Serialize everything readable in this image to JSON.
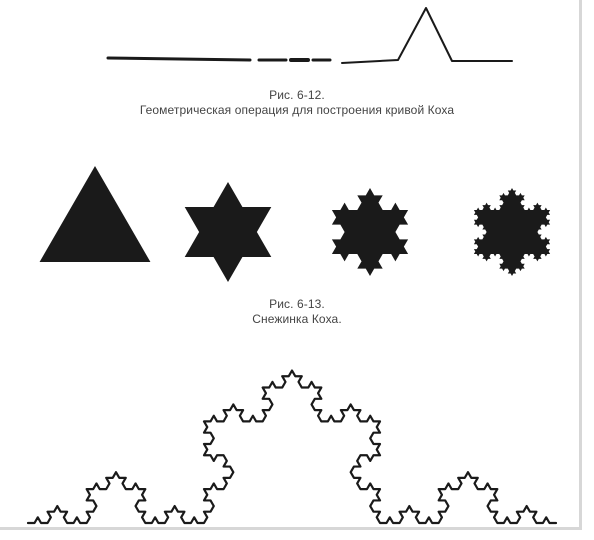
{
  "figure_12": {
    "number": "Рис. 6-12.",
    "text": "Геометрическая операция для построения кривой Коха"
  },
  "figure_13": {
    "number": "Рис. 6-13.",
    "text": "Снежинка Коха."
  },
  "colors": {
    "ink": "#1a1a1a",
    "caption": "#444444",
    "frame": "#d7d7d7"
  },
  "snowflakes": [
    {
      "iterations": 0
    },
    {
      "iterations": 1
    },
    {
      "iterations": 2
    },
    {
      "iterations": 3
    }
  ],
  "koch_curve": {
    "iterations": 4
  }
}
